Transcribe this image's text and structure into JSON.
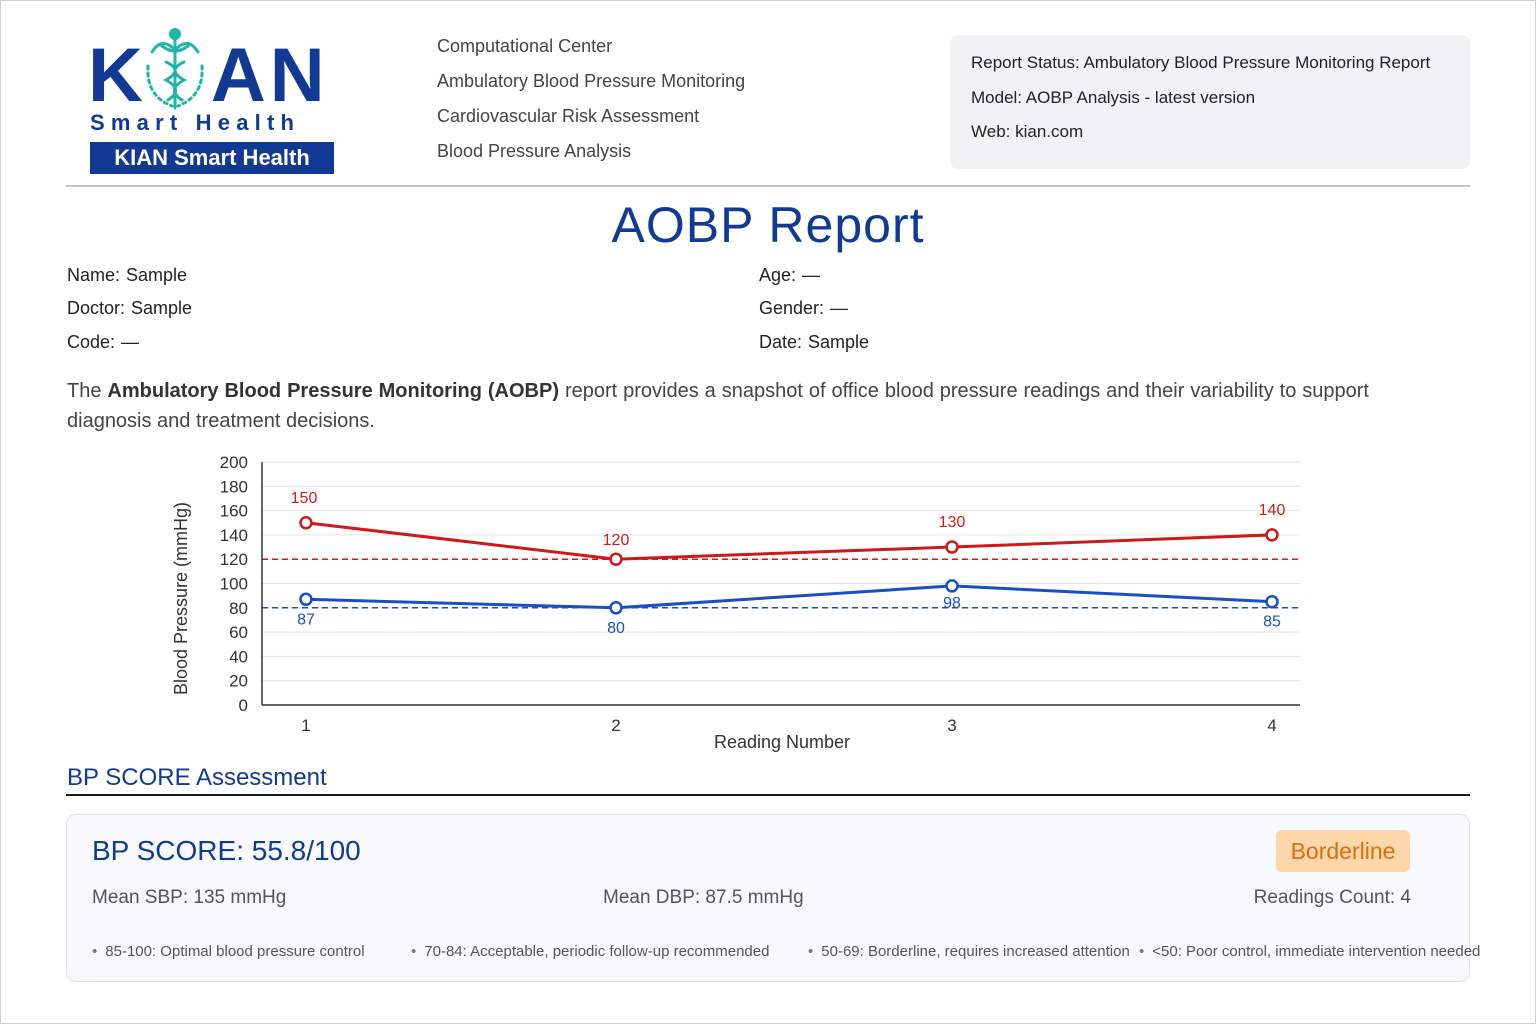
{
  "logo": {
    "wordmark_left": "K",
    "wordmark_right": "AN",
    "subtitle": "Smart Health",
    "badge": "KIAN Smart Health",
    "icon": "caduceus-icon",
    "brand_color": "#123a94",
    "accent_color": "#1fb5a9"
  },
  "services": [
    "Computational Center",
    "Ambulatory Blood Pressure Monitoring",
    "Cardiovascular Risk Assessment",
    "Blood Pressure Analysis"
  ],
  "status": {
    "report_status": "Report Status: Ambulatory Blood Pressure Monitoring Report",
    "model": "Model: AOBP Analysis - latest version",
    "web": "Web: kian.com"
  },
  "title": "AOBP Report",
  "patient": {
    "name_label": "Name:",
    "name": "Sample",
    "doctor_label": "Doctor:",
    "doctor": "Sample",
    "code_label": "Code:",
    "code": "—",
    "age_label": "Age:",
    "age": "—",
    "gender_label": "Gender:",
    "gender": "—",
    "date_label": "Date:",
    "date": "Sample"
  },
  "description": {
    "pre": "The ",
    "bold": "Ambulatory Blood Pressure Monitoring (AOBP)",
    "post": " report provides a snapshot of office blood pressure readings and their variability to support diagnosis and treatment decisions."
  },
  "chart_data": {
    "type": "line",
    "x": [
      1,
      2,
      3,
      4
    ],
    "xticks": [
      "1",
      "2",
      "3",
      "4"
    ],
    "xlabel": "Reading Number",
    "ylabel": "Blood Pressure (mmHg)",
    "ylim": [
      0,
      200
    ],
    "yticks": [
      0,
      20,
      40,
      60,
      80,
      100,
      120,
      140,
      160,
      180,
      200
    ],
    "grid": true,
    "series": [
      {
        "values": [
          150,
          120,
          130,
          140
        ],
        "color": "#cc1a1a",
        "labels": [
          "150",
          "120",
          "130",
          "140"
        ]
      },
      {
        "values": [
          87,
          80,
          98,
          85
        ],
        "color": "#1a4fc4",
        "labels": [
          "87",
          "80",
          "98",
          "85"
        ]
      }
    ],
    "reference_lines": [
      {
        "value": 120,
        "color": "#cc1a1a",
        "style": "dashed"
      },
      {
        "value": 80,
        "color": "#1a4fc4",
        "style": "dashed"
      }
    ]
  },
  "assessment": {
    "section_title": "BP SCORE Assessment",
    "score_title": "BP SCORE: 55.8/100",
    "badge": "Borderline",
    "badge_bg": "#fdd6a9",
    "badge_color": "#d9700f",
    "mean_sbp": "Mean SBP: 135 mmHg",
    "mean_dbp": "Mean DBP: 87.5 mmHg",
    "readings_count": "Readings Count: 4",
    "legend": [
      "85-100: Optimal blood pressure control",
      "70-84: Acceptable, periodic follow-up recommended",
      "50-69: Borderline, requires increased attention",
      "<50: Poor control, immediate intervention needed"
    ]
  }
}
